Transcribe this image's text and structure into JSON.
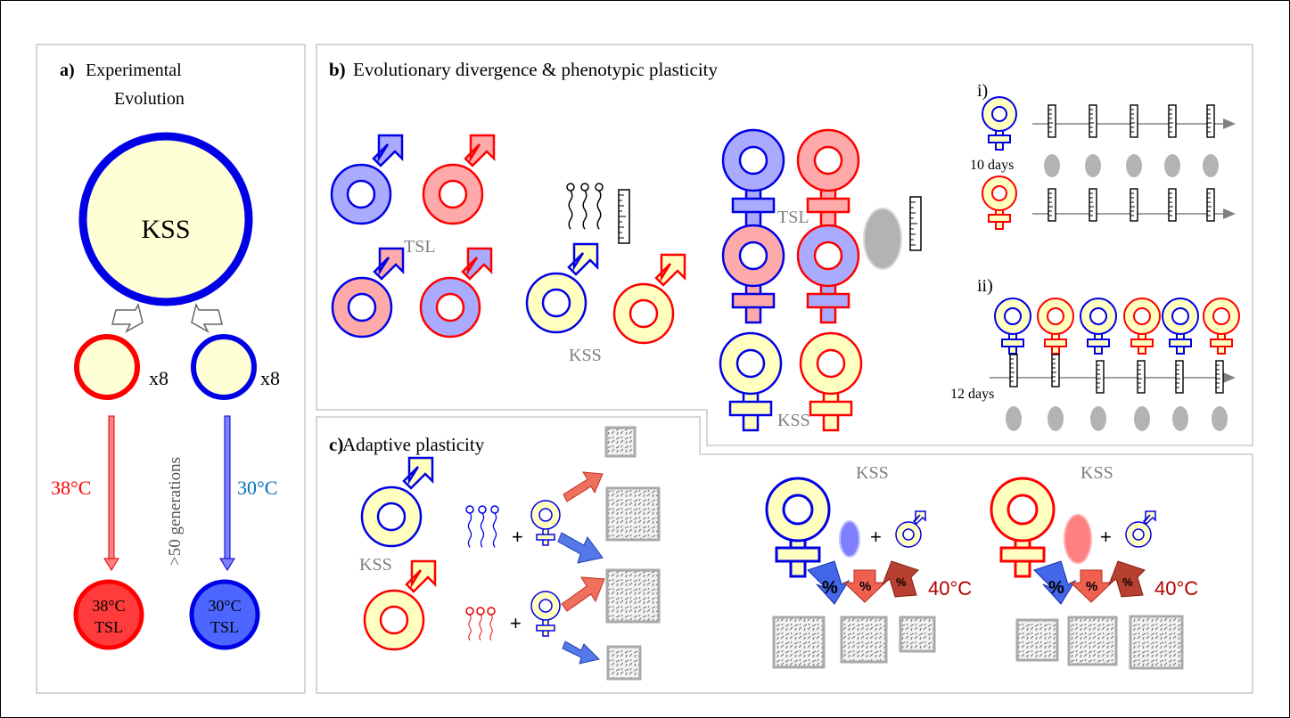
{
  "panel_a": {
    "label": "a)",
    "title_line1": "Experimental",
    "title_line2": "Evolution",
    "ancestor_label": "KSS",
    "replicate_left": "x8",
    "replicate_right": "x8",
    "temp_hot": "38°C",
    "temp_cold": "30°C",
    "generations": ">50 generations",
    "hot_line_temp": "38°C",
    "hot_line_name": "TSL",
    "cold_line_temp": "30°C",
    "cold_line_name": "TSL"
  },
  "panel_b": {
    "label": "b)",
    "title": "Evolutionary divergence & phenotypic plasticity",
    "male_tsl_label": "TSL",
    "male_kss_label": "KSS",
    "female_tsl_label": "TSL",
    "female_kss_label": "KSS",
    "sub_i": "i)",
    "sub_ii": "ii)",
    "days_i": "10 days",
    "days_ii": "12 days"
  },
  "panel_c": {
    "label": "c)",
    "title": "Adaptive plasticity",
    "male_label": "KSS",
    "plus": "+",
    "female_cold_label": "KSS",
    "female_hot_label": "KSS",
    "percent": "%",
    "temp_left": "40°C",
    "temp_right": "40°C"
  },
  "colors": {
    "blue": "#0000e6",
    "red": "#ff0000",
    "cream": "#ffffd6",
    "light_blue": "#b3b3ff",
    "light_red": "#ffaaaa",
    "gray": "#b3b3b3",
    "dark_red": "#b30000",
    "cold_text": "#0070c0"
  }
}
